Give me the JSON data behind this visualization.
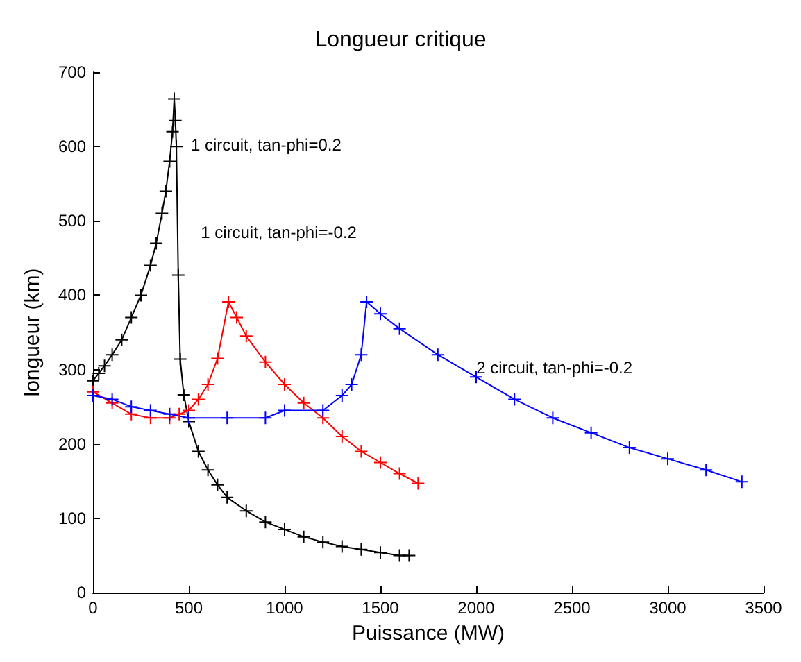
{
  "chart_data": {
    "type": "line",
    "title": "Longueur critique",
    "xlabel": "Puissance (MW)",
    "ylabel": "longueur (km)",
    "xlim": [
      0,
      3500
    ],
    "ylim": [
      0,
      700
    ],
    "xticks": [
      0,
      500,
      1000,
      1500,
      2000,
      2500,
      3000,
      3500
    ],
    "yticks": [
      0,
      100,
      200,
      300,
      400,
      500,
      600,
      700
    ],
    "grid": false,
    "marker": "cross",
    "line_style": "solid",
    "series": [
      {
        "color": "#000000",
        "x": [
          0,
          30,
          60,
          100,
          150,
          200,
          250,
          300,
          330,
          360,
          380,
          400,
          415,
          424,
          430,
          435,
          445,
          455,
          474,
          500,
          550,
          600,
          650,
          700,
          800,
          900,
          1000,
          1100,
          1200,
          1300,
          1400,
          1500,
          1600,
          1650
        ],
        "values": [
          285,
          295,
          305,
          320,
          340,
          370,
          400,
          440,
          470,
          510,
          540,
          580,
          620,
          664,
          635,
          600,
          427,
          314,
          266,
          230,
          190,
          165,
          145,
          128,
          110,
          95,
          85,
          75,
          68,
          62,
          58,
          54,
          50,
          50
        ]
      },
      {
        "color": "#ff0000",
        "x": [
          0,
          100,
          200,
          300,
          400,
          450,
          500,
          550,
          600,
          650,
          707,
          750,
          800,
          900,
          1000,
          1100,
          1200,
          1300,
          1400,
          1500,
          1600,
          1697
        ],
        "values": [
          270,
          255,
          240,
          235,
          235,
          240,
          245,
          260,
          280,
          315,
          391,
          370,
          345,
          310,
          280,
          255,
          235,
          210,
          190,
          175,
          160,
          147
        ]
      },
      {
        "color": "#0000ff",
        "x": [
          0,
          100,
          200,
          300,
          400,
          500,
          700,
          900,
          1000,
          1200,
          1300,
          1350,
          1400,
          1428,
          1500,
          1600,
          1800,
          2000,
          2200,
          2400,
          2600,
          2800,
          3000,
          3200,
          3387
        ],
        "values": [
          265,
          260,
          250,
          245,
          240,
          235,
          235,
          235,
          245,
          245,
          265,
          280,
          320,
          391,
          375,
          355,
          320,
          290,
          260,
          235,
          215,
          195,
          180,
          165,
          149
        ]
      }
    ],
    "annotations": [
      "1 circuit, tan-phi=0.2",
      "1 circuit, tan-phi=-0.2",
      {
        "text": "2 circuit, tan-phi=-0.2",
        "x": 2001,
        "y": 302
      }
    ]
  }
}
